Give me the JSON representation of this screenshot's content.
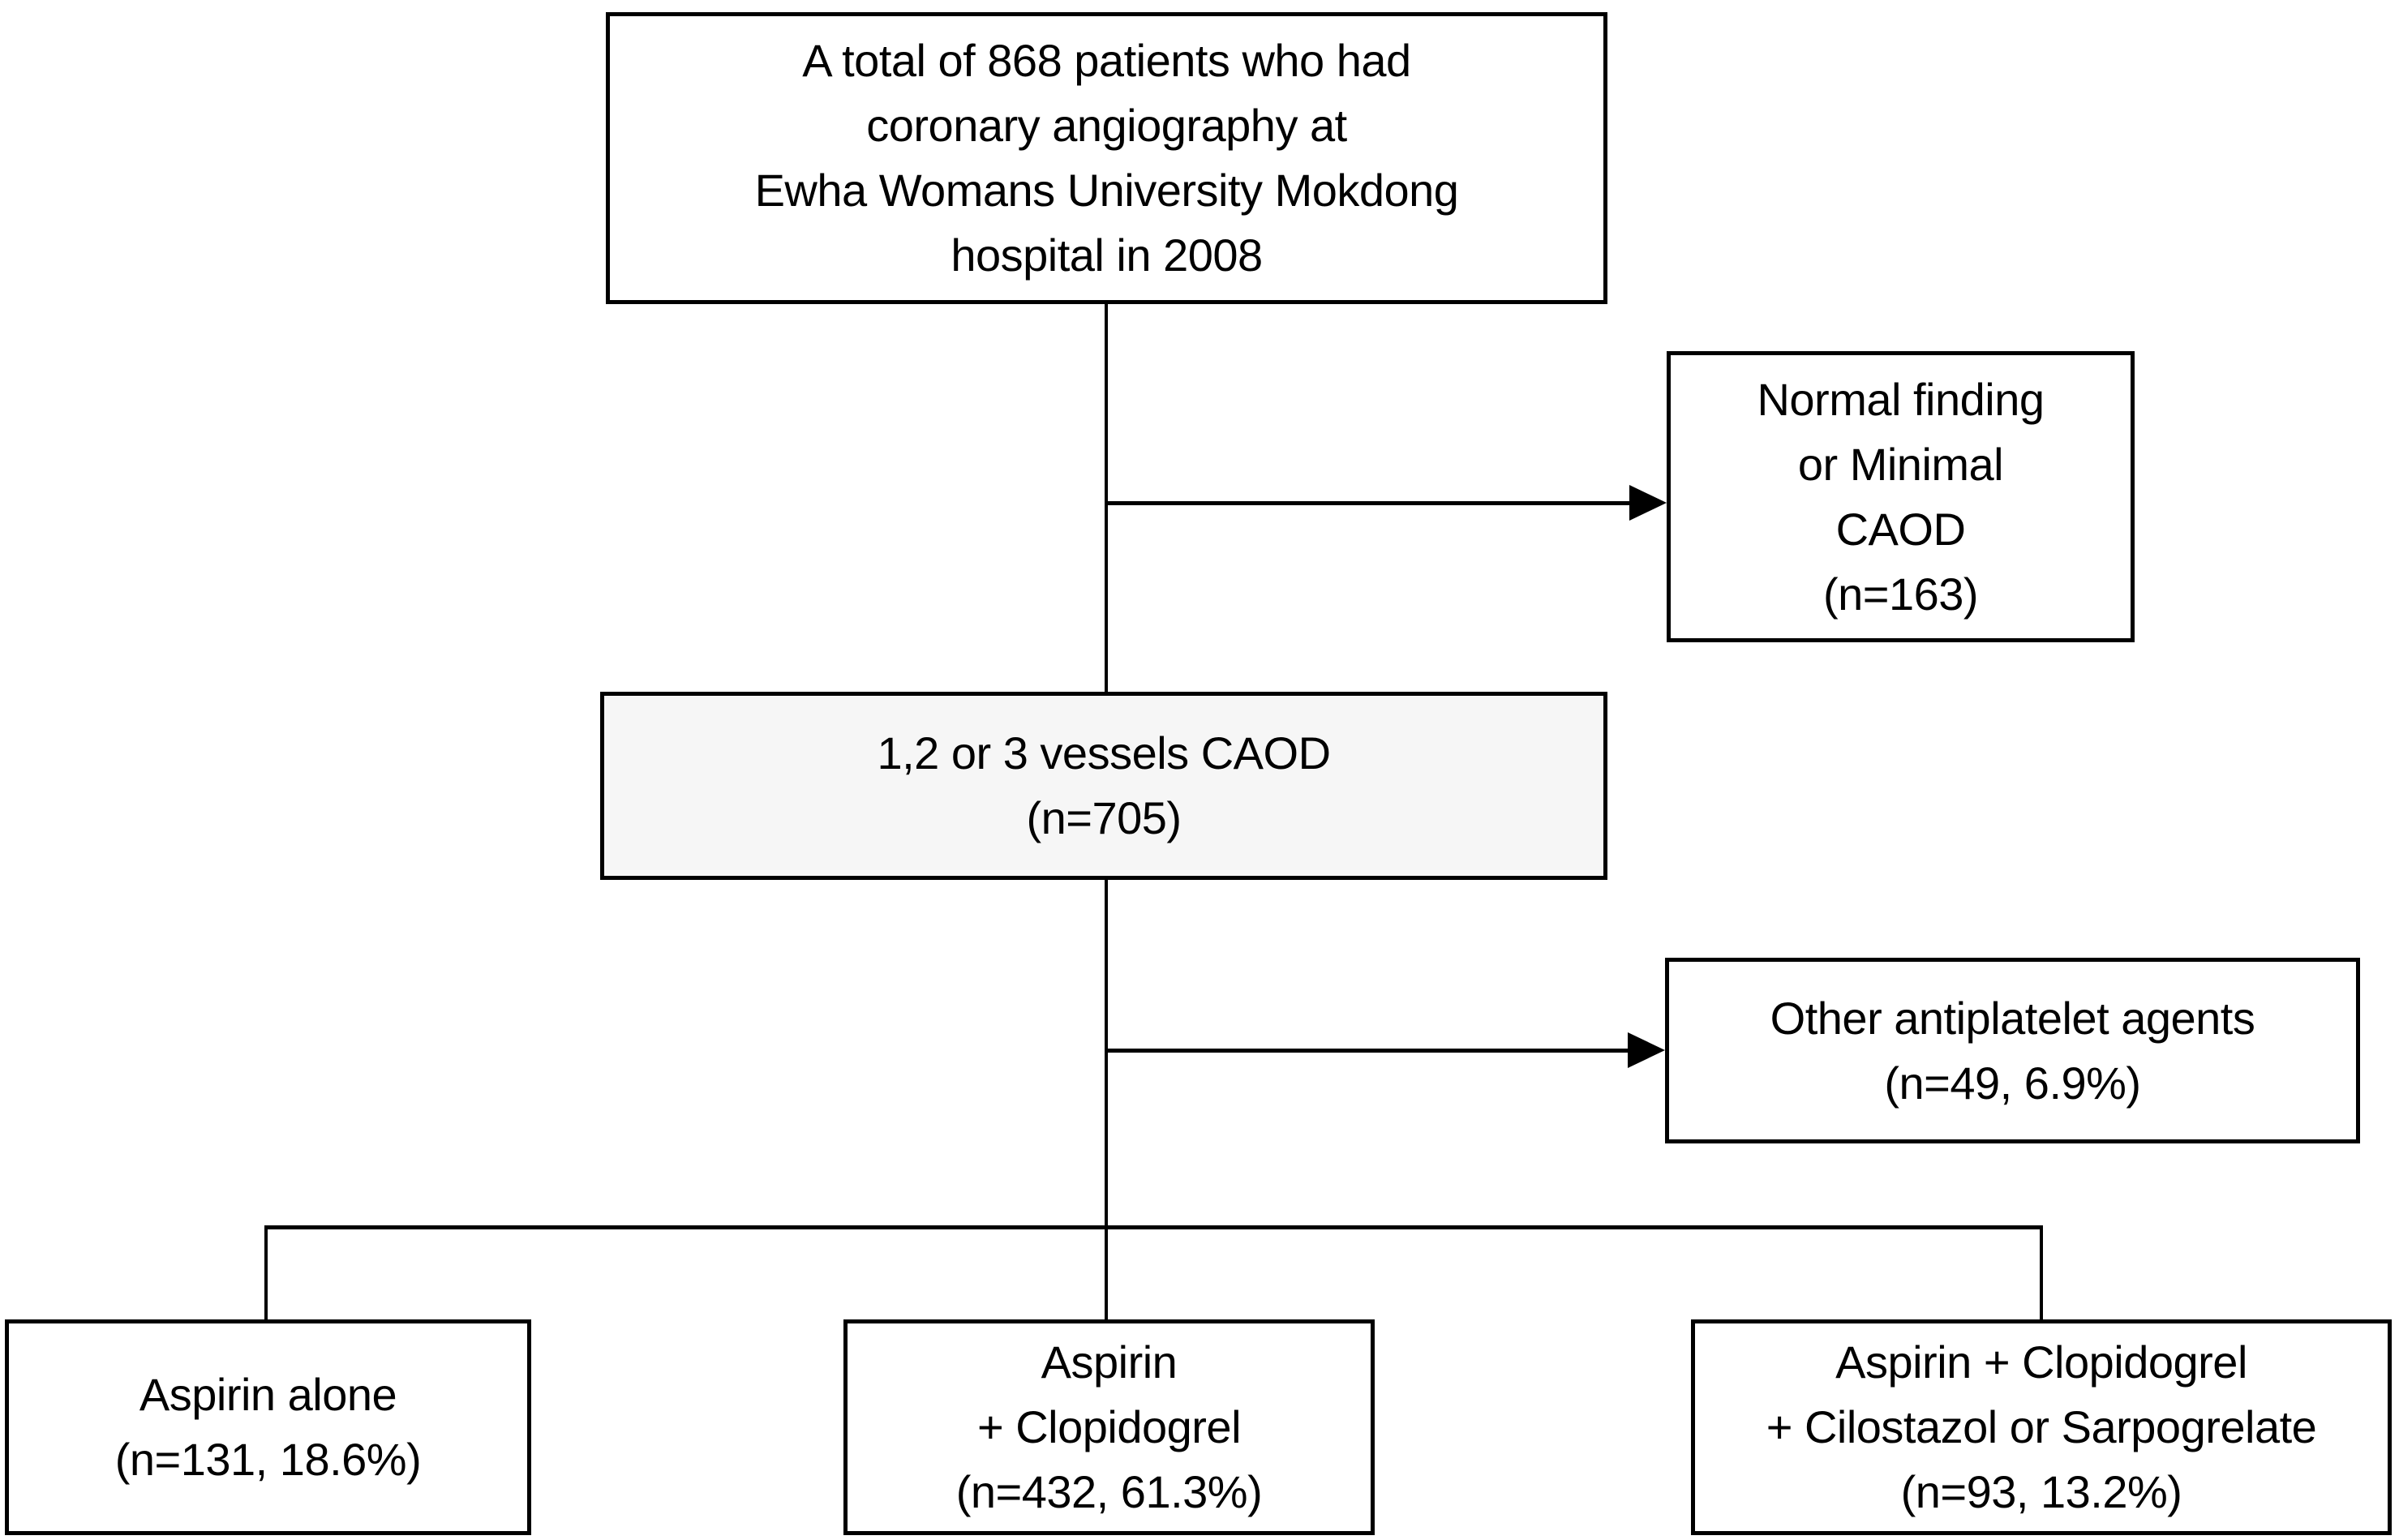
{
  "figure": {
    "type": "flowchart",
    "title": "Patient enrollment flow diagram",
    "colors": {
      "box_border": "#000000",
      "box_fill": "#ffffff",
      "vessels_box_fill": "#f6f6f6",
      "connector": "#000000",
      "text": "#000000",
      "background": "#ffffff"
    },
    "boxes": {
      "total": {
        "lines": [
          "A total of 868 patients who had",
          "coronary angiography at",
          "Ewha Womans University Mokdong",
          "hospital in 2008"
        ]
      },
      "normal": {
        "lines": [
          "Normal finding",
          "or Minimal",
          "CAOD",
          "(n=163)"
        ]
      },
      "vessels": {
        "lines": [
          "1,2 or 3 vessels CAOD",
          "(n=705)"
        ]
      },
      "other": {
        "lines": [
          "Other antiplatelet agents",
          "(n=49, 6.9%)"
        ]
      },
      "aspirin_alone": {
        "lines": [
          "Aspirin alone",
          "(n=131, 18.6%)"
        ]
      },
      "aspirin_clopidogrel": {
        "lines": [
          "Aspirin",
          "+ Clopidogrel",
          "(n=432, 61.3%)"
        ]
      },
      "triple_therapy": {
        "lines": [
          "Aspirin + Clopidogrel",
          "+ Cilostazol or Sarpogrelate",
          "(n=93, 13.2%)"
        ]
      }
    }
  }
}
